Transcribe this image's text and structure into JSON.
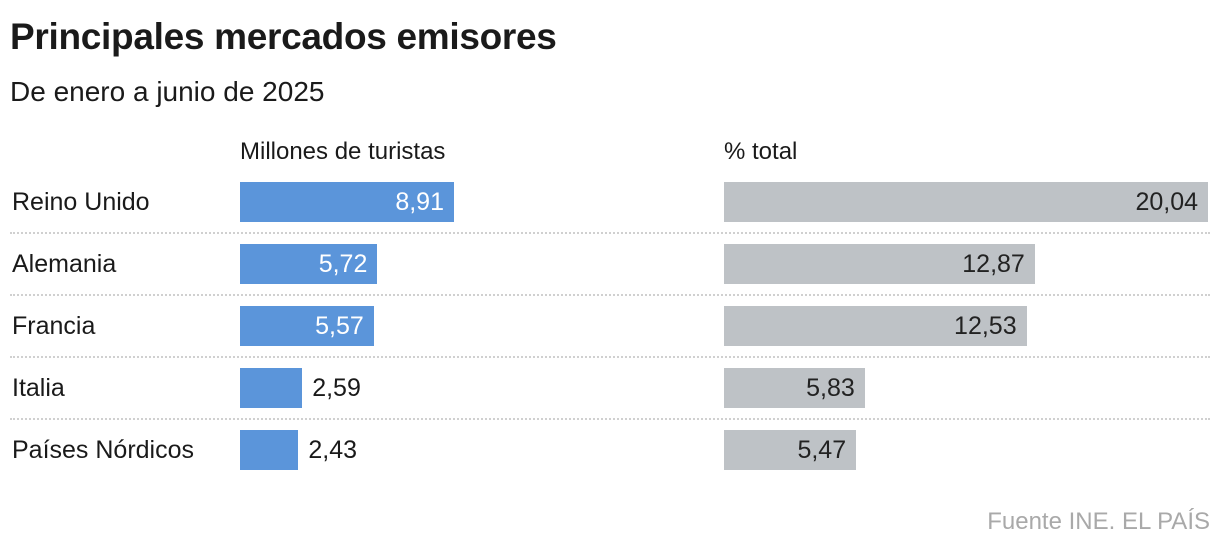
{
  "title": "Principales mercados emisores",
  "subtitle": "De enero a junio de 2025",
  "source": "Fuente INE. EL PAÍS",
  "chart_data": [
    {
      "type": "bar",
      "orientation": "horizontal",
      "title": "Millones de turistas",
      "categories": [
        "Reino Unido",
        "Alemania",
        "Francia",
        "Italia",
        "Países Nórdicos"
      ],
      "values": [
        8.91,
        5.72,
        5.57,
        2.59,
        2.43
      ],
      "labels": [
        "8,91",
        "5,72",
        "5,57",
        "2,59",
        "2,43"
      ],
      "color": "#5b95da"
    },
    {
      "type": "bar",
      "orientation": "horizontal",
      "title": "% total",
      "categories": [
        "Reino Unido",
        "Alemania",
        "Francia",
        "Italia",
        "Países Nórdicos"
      ],
      "values": [
        20.04,
        12.87,
        12.53,
        5.83,
        5.47
      ],
      "labels": [
        "20,04",
        "12,87",
        "12,53",
        "5,83",
        "5,47"
      ],
      "color": "#bec2c6"
    }
  ]
}
